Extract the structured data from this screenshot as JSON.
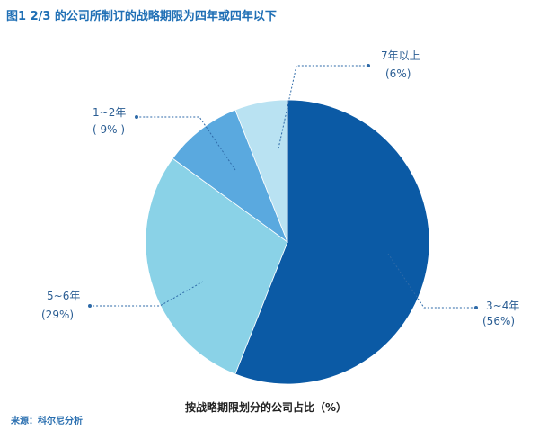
{
  "figure_title": "图1  2/3 的公司所制订的战略期限为四年或四年以下",
  "source": "来源：科尔尼分析",
  "chart_data": {
    "type": "pie",
    "title": "按战略期限划分的公司占比（%）",
    "slices": [
      {
        "label": "3~4年",
        "value_label": "(56%)",
        "value": 56,
        "color": "#0b5aa5"
      },
      {
        "label": "5~6年",
        "value_label": "(29%)",
        "value": 29,
        "color": "#8ad2e7"
      },
      {
        "label": "1~2年",
        "value_label": "( 9% )",
        "value": 9,
        "color": "#5aa9df"
      },
      {
        "label": "7年以上",
        "value_label": "(6%)",
        "value": 6,
        "color": "#b9e2f2"
      }
    ],
    "start_angle_deg": 0,
    "direction": "clockwise"
  }
}
